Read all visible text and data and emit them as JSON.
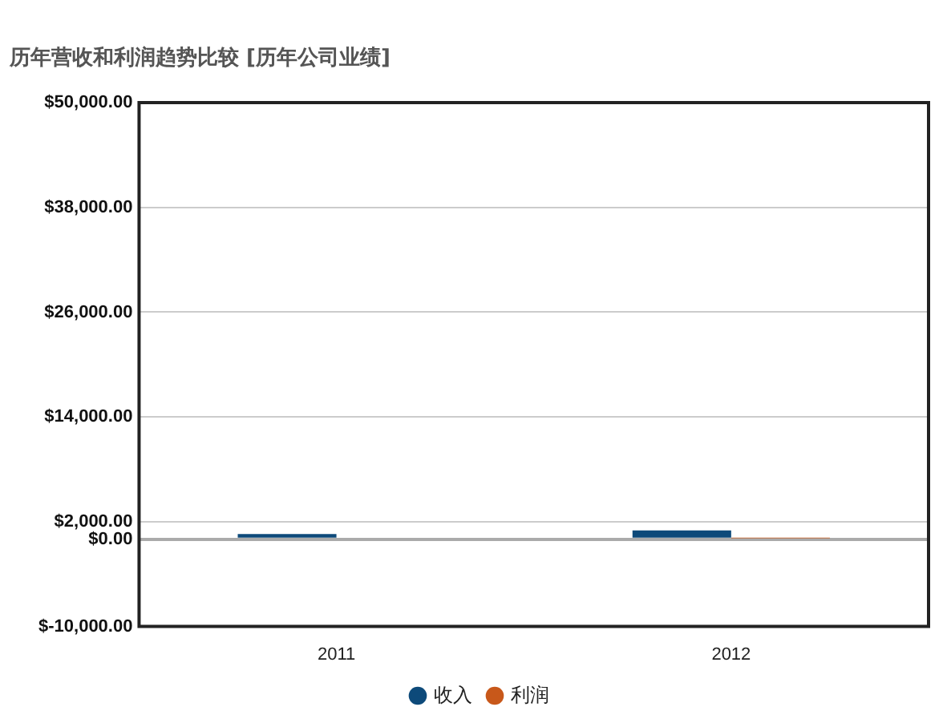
{
  "chart_data": {
    "type": "bar",
    "title": "历年营收和利润趋势比较 [历年公司业绩]",
    "categories": [
      "2011",
      "2012"
    ],
    "series": [
      {
        "name": "收入",
        "color": "#0d4a7a",
        "values": [
          600,
          1000
        ]
      },
      {
        "name": "利润",
        "color": "#c8581a",
        "values": [
          0,
          100
        ]
      }
    ],
    "ylim": [
      -10000,
      50000
    ],
    "yticks": [
      {
        "value": -10000,
        "label": "$-10,000.00"
      },
      {
        "value": 0,
        "label": "$0.00"
      },
      {
        "value": 2000,
        "label": "$2,000.00"
      },
      {
        "value": 14000,
        "label": "$14,000.00"
      },
      {
        "value": 26000,
        "label": "$26,000.00"
      },
      {
        "value": 38000,
        "label": "$38,000.00"
      },
      {
        "value": 50000,
        "label": "$50,000.00"
      }
    ],
    "grid": "y",
    "legend": "bottom"
  }
}
